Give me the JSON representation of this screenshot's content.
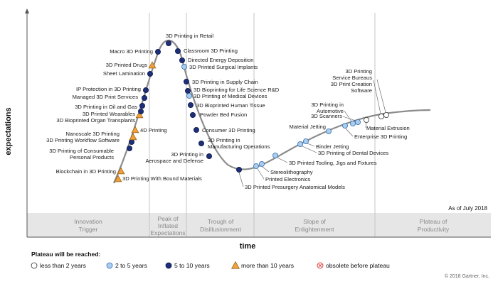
{
  "chart_data": {
    "type": "scatter",
    "title": "",
    "xlabel": "time",
    "ylabel": "expectations",
    "as_of": "As of July 2018",
    "copyright": "© 2018 Gartner, Inc.",
    "phases": [
      {
        "name": "Innovation Trigger"
      },
      {
        "name": "Peak of Inflated Expectations"
      },
      {
        "name": "Trough of Disillusionment"
      },
      {
        "name": "Slope of Enlightenment"
      },
      {
        "name": "Plateau of Productivity"
      }
    ],
    "legend_title": "Plateau will be reached:",
    "categories": [
      {
        "key": "lt2",
        "label": "less than 2 years",
        "fill": "#ffffff",
        "stroke": "#333333",
        "shape": "circle"
      },
      {
        "key": "2to5",
        "label": "2 to 5 years",
        "fill": "#a9cdf0",
        "stroke": "#3a6ea8",
        "shape": "circle"
      },
      {
        "key": "5to10",
        "label": "5 to 10 years",
        "fill": "#1c2f78",
        "stroke": "#0d1a4a",
        "shape": "circle"
      },
      {
        "key": "gt10",
        "label": "more than 10 years",
        "fill": "#f2a03a",
        "stroke": "#8a5a10",
        "shape": "triangle"
      },
      {
        "key": "obsolete",
        "label": "obsolete before plateau",
        "fill": "#ffffff",
        "stroke": "#e04040",
        "shape": "cross"
      }
    ],
    "points": [
      {
        "name": "3D Printing With Bound Materials",
        "plateau": "gt10"
      },
      {
        "name": "Blockchain in 3D Printing",
        "plateau": "gt10"
      },
      {
        "name": "3D Printing of Consumable Personal Products",
        "plateau": "5to10"
      },
      {
        "name": "3D Printing Workflow Software",
        "plateau": "5to10"
      },
      {
        "name": "Nanoscale 3D Printing",
        "plateau": "gt10"
      },
      {
        "name": "4D Printing",
        "plateau": "gt10"
      },
      {
        "name": "3D Bioprinted Organ Transplants",
        "plateau": "gt10"
      },
      {
        "name": "3D Printed Wearables",
        "plateau": "5to10"
      },
      {
        "name": "3D Printing in Oil and Gas",
        "plateau": "5to10"
      },
      {
        "name": "Managed 3D Print Services",
        "plateau": "5to10"
      },
      {
        "name": "IP Protection in 3D Printing",
        "plateau": "5to10"
      },
      {
        "name": "Sheet Lamination",
        "plateau": "5to10"
      },
      {
        "name": "3D Printed Drugs",
        "plateau": "gt10"
      },
      {
        "name": "Macro 3D Printing",
        "plateau": "5to10"
      },
      {
        "name": "3D Printing in Retail",
        "plateau": "5to10"
      },
      {
        "name": "Classroom 3D Printing",
        "plateau": "5to10"
      },
      {
        "name": "Directed Energy Deposition",
        "plateau": "5to10"
      },
      {
        "name": "3D Printed Surgical Implants",
        "plateau": "2to5"
      },
      {
        "name": "3D Printing in Supply Chain",
        "plateau": "5to10"
      },
      {
        "name": "3D Bioprinting for Life Science R&D",
        "plateau": "5to10"
      },
      {
        "name": "3D Printing of Medical Devices",
        "plateau": "2to5"
      },
      {
        "name": "3D Bioprinted Human Tissue",
        "plateau": "5to10"
      },
      {
        "name": "Powder Bed Fusion",
        "plateau": "5to10"
      },
      {
        "name": "Consumer 3D Printing",
        "plateau": "5to10"
      },
      {
        "name": "3D Printing in Manufacturing Operations",
        "plateau": "5to10"
      },
      {
        "name": "3D Printing in Aerospace and Defense",
        "plateau": "5to10"
      },
      {
        "name": "3D Printed Presurgery Anatomical Models",
        "plateau": "5to10"
      },
      {
        "name": "Printed Electronics",
        "plateau": "2to5"
      },
      {
        "name": "Stereolithography",
        "plateau": "2to5"
      },
      {
        "name": "3D Printed Tooling, Jigs and Fixtures",
        "plateau": "2to5"
      },
      {
        "name": "3D Printing of Dental Devices",
        "plateau": "2to5"
      },
      {
        "name": "Binder Jetting",
        "plateau": "2to5"
      },
      {
        "name": "Material Jetting",
        "plateau": "2to5"
      },
      {
        "name": "Enterprise 3D Printing",
        "plateau": "2to5"
      },
      {
        "name": "3D Printing in Automotive",
        "plateau": "2to5"
      },
      {
        "name": "3D Scanners",
        "plateau": "2to5"
      },
      {
        "name": "Material Extrusion",
        "plateau": "lt2"
      },
      {
        "name": "3D Printing Service Bureaus",
        "plateau": "lt2"
      },
      {
        "name": "3D Print Creation Software",
        "plateau": "lt2"
      }
    ]
  }
}
